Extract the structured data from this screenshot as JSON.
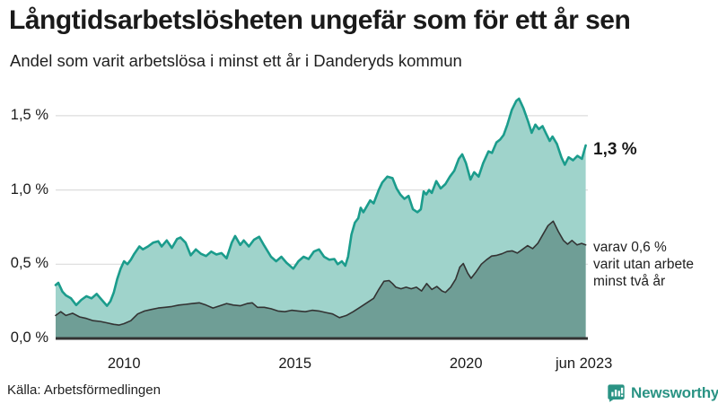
{
  "chart_data": {
    "type": "area",
    "title": "Långtidsarbetslösheten ungefär som för ett år sen",
    "subtitle": "Andel som varit arbetslösa i minst ett år i Danderyds kommun",
    "xlabel": "",
    "ylabel": "",
    "ylim": [
      0,
      1.7
    ],
    "x_range": [
      2008,
      2023.5
    ],
    "grid": "horizontal",
    "legend": "none",
    "yticks": [
      {
        "value": 0.0,
        "label": "0,0 %"
      },
      {
        "value": 0.5,
        "label": "0,5 %"
      },
      {
        "value": 1.0,
        "label": "1,0 %"
      },
      {
        "value": 1.5,
        "label": "1,5 %"
      }
    ],
    "xticks": [
      {
        "year": 2010,
        "label": "2010"
      },
      {
        "year": 2015,
        "label": "2015"
      },
      {
        "year": 2020,
        "label": "2020"
      },
      {
        "year": 2023.45,
        "label": "jun 2023"
      }
    ],
    "series": [
      {
        "name": "Andel som varit arbetslösa i minst ett år",
        "line_color": "#1b9c8c",
        "fill_color": "#9fd3cb",
        "line_width": 2.6,
        "points": [
          [
            2008.0,
            0.36
          ],
          [
            2008.08,
            0.375
          ],
          [
            2008.2,
            0.315
          ],
          [
            2008.3,
            0.29
          ],
          [
            2008.45,
            0.27
          ],
          [
            2008.6,
            0.225
          ],
          [
            2008.75,
            0.26
          ],
          [
            2008.9,
            0.285
          ],
          [
            2009.05,
            0.27
          ],
          [
            2009.2,
            0.3
          ],
          [
            2009.35,
            0.26
          ],
          [
            2009.5,
            0.22
          ],
          [
            2009.6,
            0.25
          ],
          [
            2009.7,
            0.31
          ],
          [
            2009.8,
            0.4
          ],
          [
            2009.9,
            0.47
          ],
          [
            2010.0,
            0.52
          ],
          [
            2010.1,
            0.5
          ],
          [
            2010.2,
            0.53
          ],
          [
            2010.3,
            0.57
          ],
          [
            2010.45,
            0.62
          ],
          [
            2010.55,
            0.6
          ],
          [
            2010.7,
            0.62
          ],
          [
            2010.85,
            0.645
          ],
          [
            2011.0,
            0.655
          ],
          [
            2011.1,
            0.62
          ],
          [
            2011.25,
            0.66
          ],
          [
            2011.4,
            0.61
          ],
          [
            2011.55,
            0.67
          ],
          [
            2011.65,
            0.68
          ],
          [
            2011.8,
            0.645
          ],
          [
            2011.95,
            0.56
          ],
          [
            2012.1,
            0.6
          ],
          [
            2012.25,
            0.57
          ],
          [
            2012.4,
            0.555
          ],
          [
            2012.55,
            0.585
          ],
          [
            2012.7,
            0.565
          ],
          [
            2012.85,
            0.575
          ],
          [
            2013.0,
            0.54
          ],
          [
            2013.15,
            0.645
          ],
          [
            2013.25,
            0.69
          ],
          [
            2013.4,
            0.63
          ],
          [
            2013.5,
            0.66
          ],
          [
            2013.65,
            0.62
          ],
          [
            2013.8,
            0.665
          ],
          [
            2013.95,
            0.685
          ],
          [
            2014.1,
            0.625
          ],
          [
            2014.3,
            0.55
          ],
          [
            2014.45,
            0.52
          ],
          [
            2014.6,
            0.55
          ],
          [
            2014.75,
            0.51
          ],
          [
            2014.95,
            0.47
          ],
          [
            2015.1,
            0.52
          ],
          [
            2015.25,
            0.55
          ],
          [
            2015.4,
            0.535
          ],
          [
            2015.55,
            0.585
          ],
          [
            2015.7,
            0.6
          ],
          [
            2015.85,
            0.55
          ],
          [
            2016.0,
            0.53
          ],
          [
            2016.15,
            0.535
          ],
          [
            2016.25,
            0.5
          ],
          [
            2016.37,
            0.52
          ],
          [
            2016.47,
            0.49
          ],
          [
            2016.55,
            0.55
          ],
          [
            2016.65,
            0.7
          ],
          [
            2016.75,
            0.78
          ],
          [
            2016.85,
            0.81
          ],
          [
            2016.92,
            0.88
          ],
          [
            2017.0,
            0.85
          ],
          [
            2017.1,
            0.89
          ],
          [
            2017.2,
            0.93
          ],
          [
            2017.3,
            0.91
          ],
          [
            2017.45,
            1.0
          ],
          [
            2017.55,
            1.05
          ],
          [
            2017.7,
            1.09
          ],
          [
            2017.85,
            1.08
          ],
          [
            2017.97,
            1.01
          ],
          [
            2018.08,
            0.97
          ],
          [
            2018.2,
            0.94
          ],
          [
            2018.32,
            0.96
          ],
          [
            2018.45,
            0.87
          ],
          [
            2018.58,
            0.85
          ],
          [
            2018.68,
            0.87
          ],
          [
            2018.76,
            0.99
          ],
          [
            2018.84,
            0.97
          ],
          [
            2018.92,
            1.0
          ],
          [
            2019.0,
            0.98
          ],
          [
            2019.13,
            1.06
          ],
          [
            2019.26,
            1.01
          ],
          [
            2019.4,
            1.04
          ],
          [
            2019.53,
            1.09
          ],
          [
            2019.66,
            1.13
          ],
          [
            2019.79,
            1.21
          ],
          [
            2019.89,
            1.24
          ],
          [
            2020.0,
            1.18
          ],
          [
            2020.13,
            1.07
          ],
          [
            2020.24,
            1.12
          ],
          [
            2020.37,
            1.09
          ],
          [
            2020.5,
            1.18
          ],
          [
            2020.66,
            1.26
          ],
          [
            2020.76,
            1.25
          ],
          [
            2020.89,
            1.32
          ],
          [
            2021.0,
            1.34
          ],
          [
            2021.1,
            1.37
          ],
          [
            2021.21,
            1.44
          ],
          [
            2021.34,
            1.54
          ],
          [
            2021.47,
            1.6
          ],
          [
            2021.55,
            1.615
          ],
          [
            2021.68,
            1.55
          ],
          [
            2021.82,
            1.46
          ],
          [
            2021.92,
            1.385
          ],
          [
            2022.03,
            1.44
          ],
          [
            2022.13,
            1.41
          ],
          [
            2022.24,
            1.43
          ],
          [
            2022.34,
            1.38
          ],
          [
            2022.45,
            1.33
          ],
          [
            2022.53,
            1.36
          ],
          [
            2022.66,
            1.31
          ],
          [
            2022.79,
            1.22
          ],
          [
            2022.89,
            1.17
          ],
          [
            2023.0,
            1.22
          ],
          [
            2023.13,
            1.2
          ],
          [
            2023.26,
            1.23
          ],
          [
            2023.39,
            1.21
          ],
          [
            2023.5,
            1.3
          ]
        ]
      },
      {
        "name": "Varav utan arbete minst två år",
        "line_color": "#333333",
        "fill_color": "#6f9e96",
        "line_width": 1.6,
        "points": [
          [
            2008.0,
            0.155
          ],
          [
            2008.15,
            0.18
          ],
          [
            2008.3,
            0.155
          ],
          [
            2008.5,
            0.17
          ],
          [
            2008.7,
            0.145
          ],
          [
            2008.9,
            0.135
          ],
          [
            2009.1,
            0.12
          ],
          [
            2009.3,
            0.115
          ],
          [
            2009.5,
            0.105
          ],
          [
            2009.7,
            0.095
          ],
          [
            2009.85,
            0.09
          ],
          [
            2010.0,
            0.1
          ],
          [
            2010.2,
            0.12
          ],
          [
            2010.4,
            0.165
          ],
          [
            2010.6,
            0.185
          ],
          [
            2010.8,
            0.195
          ],
          [
            2011.0,
            0.205
          ],
          [
            2011.2,
            0.21
          ],
          [
            2011.4,
            0.215
          ],
          [
            2011.6,
            0.225
          ],
          [
            2011.8,
            0.23
          ],
          [
            2012.0,
            0.235
          ],
          [
            2012.2,
            0.24
          ],
          [
            2012.4,
            0.225
          ],
          [
            2012.6,
            0.205
          ],
          [
            2012.8,
            0.22
          ],
          [
            2013.0,
            0.235
          ],
          [
            2013.2,
            0.225
          ],
          [
            2013.4,
            0.22
          ],
          [
            2013.6,
            0.235
          ],
          [
            2013.75,
            0.24
          ],
          [
            2013.9,
            0.21
          ],
          [
            2014.1,
            0.21
          ],
          [
            2014.3,
            0.2
          ],
          [
            2014.5,
            0.185
          ],
          [
            2014.7,
            0.18
          ],
          [
            2014.9,
            0.19
          ],
          [
            2015.1,
            0.185
          ],
          [
            2015.3,
            0.18
          ],
          [
            2015.5,
            0.19
          ],
          [
            2015.7,
            0.185
          ],
          [
            2015.9,
            0.175
          ],
          [
            2016.1,
            0.165
          ],
          [
            2016.3,
            0.14
          ],
          [
            2016.5,
            0.155
          ],
          [
            2016.7,
            0.18
          ],
          [
            2016.9,
            0.21
          ],
          [
            2017.1,
            0.24
          ],
          [
            2017.3,
            0.27
          ],
          [
            2017.45,
            0.33
          ],
          [
            2017.6,
            0.385
          ],
          [
            2017.75,
            0.39
          ],
          [
            2017.85,
            0.37
          ],
          [
            2017.95,
            0.345
          ],
          [
            2018.1,
            0.335
          ],
          [
            2018.25,
            0.345
          ],
          [
            2018.4,
            0.335
          ],
          [
            2018.55,
            0.345
          ],
          [
            2018.7,
            0.32
          ],
          [
            2018.85,
            0.37
          ],
          [
            2019.0,
            0.33
          ],
          [
            2019.15,
            0.35
          ],
          [
            2019.3,
            0.32
          ],
          [
            2019.4,
            0.31
          ],
          [
            2019.55,
            0.345
          ],
          [
            2019.7,
            0.4
          ],
          [
            2019.82,
            0.48
          ],
          [
            2019.92,
            0.505
          ],
          [
            2020.05,
            0.44
          ],
          [
            2020.15,
            0.405
          ],
          [
            2020.3,
            0.45
          ],
          [
            2020.45,
            0.5
          ],
          [
            2020.6,
            0.53
          ],
          [
            2020.75,
            0.555
          ],
          [
            2020.9,
            0.56
          ],
          [
            2021.05,
            0.57
          ],
          [
            2021.2,
            0.585
          ],
          [
            2021.35,
            0.59
          ],
          [
            2021.5,
            0.575
          ],
          [
            2021.65,
            0.6
          ],
          [
            2021.8,
            0.625
          ],
          [
            2021.95,
            0.605
          ],
          [
            2022.1,
            0.64
          ],
          [
            2022.25,
            0.7
          ],
          [
            2022.4,
            0.76
          ],
          [
            2022.55,
            0.79
          ],
          [
            2022.7,
            0.72
          ],
          [
            2022.85,
            0.66
          ],
          [
            2022.97,
            0.635
          ],
          [
            2023.1,
            0.66
          ],
          [
            2023.25,
            0.63
          ],
          [
            2023.38,
            0.64
          ],
          [
            2023.5,
            0.63
          ]
        ]
      }
    ],
    "annotations": {
      "end_value_label": "1,3 %",
      "series2_label": "varav 0,6 %\nvarit utan arbete\nminst två år"
    },
    "colors": {
      "grid": "#dcdcdc",
      "baseline": "#333333",
      "text": "#1a1a1a",
      "brand_teal": "#2a9384"
    }
  },
  "footer": {
    "source": "Källa: Arbetsförmedlingen",
    "brand": "Newsworthy"
  }
}
